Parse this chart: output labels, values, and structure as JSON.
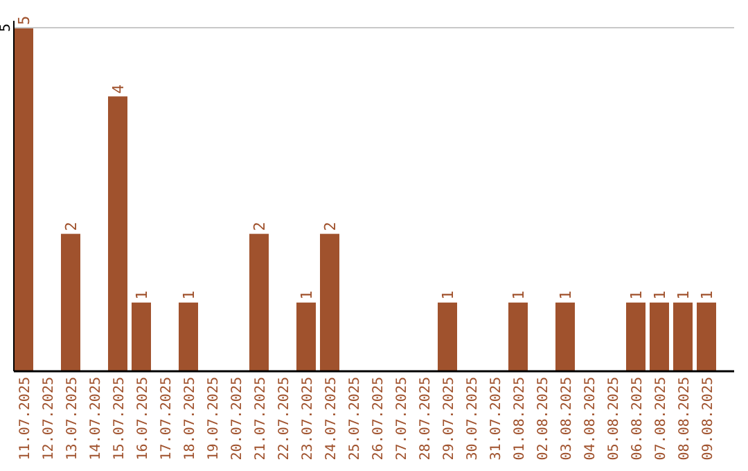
{
  "chart_data": {
    "type": "bar",
    "categories": [
      "11.07.2025",
      "12.07.2025",
      "13.07.2025",
      "14.07.2025",
      "15.07.2025",
      "16.07.2025",
      "17.07.2025",
      "18.07.2025",
      "19.07.2025",
      "20.07.2025",
      "21.07.2025",
      "22.07.2025",
      "23.07.2025",
      "24.07.2025",
      "25.07.2025",
      "26.07.2025",
      "27.07.2025",
      "28.07.2025",
      "29.07.2025",
      "30.07.2025",
      "31.07.2025",
      "01.08.2025",
      "02.08.2025",
      "03.08.2025",
      "04.08.2025",
      "05.08.2025",
      "06.08.2025",
      "07.08.2025",
      "08.08.2025",
      "09.08.2025"
    ],
    "values": [
      5,
      0,
      2,
      0,
      4,
      1,
      0,
      1,
      0,
      0,
      2,
      0,
      1,
      2,
      0,
      0,
      0,
      0,
      1,
      0,
      0,
      1,
      0,
      1,
      0,
      0,
      1,
      1,
      1,
      1
    ],
    "value_labels": [
      "5",
      null,
      "2",
      null,
      "4",
      "1",
      null,
      "1",
      null,
      null,
      "2",
      null,
      "1",
      "2",
      null,
      null,
      null,
      null,
      "1",
      null,
      null,
      "1",
      null,
      "1",
      null,
      null,
      "1",
      "1",
      "1",
      "1"
    ],
    "color": "#a0522d",
    "ylim": [
      0,
      5
    ],
    "yticks": [
      5
    ]
  }
}
